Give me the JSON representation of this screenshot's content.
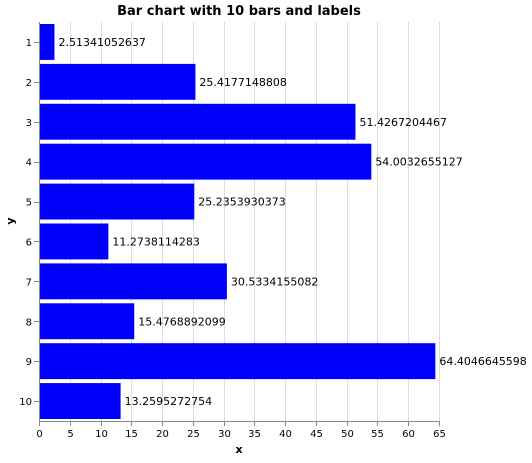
{
  "chart_data": {
    "type": "bar",
    "orientation": "horizontal",
    "title": "Bar chart with 10 bars and labels",
    "xlabel": "x",
    "ylabel": "y",
    "categories": [
      "1",
      "2",
      "3",
      "4",
      "5",
      "6",
      "7",
      "8",
      "9",
      "10"
    ],
    "values": [
      2.51341052637,
      25.4177148808,
      51.4267204467,
      54.0032655127,
      25.2353930373,
      11.2738114283,
      30.5334155082,
      15.4768892099,
      64.4046645598,
      13.2595272754
    ],
    "data_labels": [
      "2.51341052637",
      "25.4177148808",
      "51.4267204467",
      "54.0032655127",
      "25.2353930373",
      "11.2738114283",
      "30.5334155082",
      "15.4768892099",
      "64.4046645598",
      "13.2595272754"
    ],
    "xlim": [
      0,
      65
    ],
    "x_ticks": [
      0,
      5,
      10,
      15,
      20,
      25,
      30,
      35,
      40,
      45,
      50,
      55,
      60,
      65
    ],
    "grid": true,
    "bar_color": "#0000ff"
  }
}
